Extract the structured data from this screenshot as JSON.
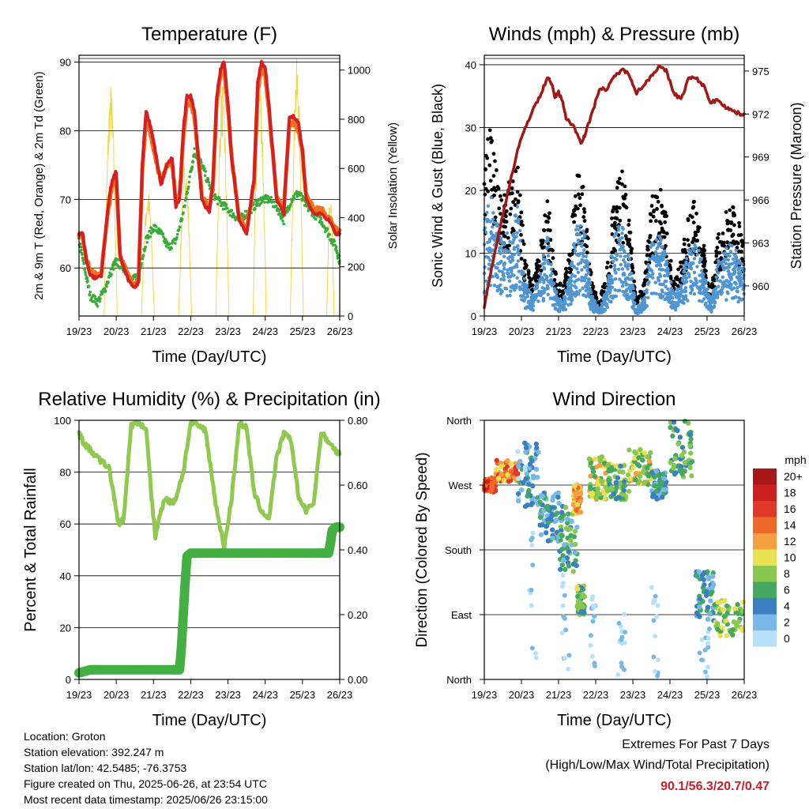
{
  "chart_data": [
    {
      "type": "line",
      "title": "Temperature (F)",
      "xlabel": "Time (Day/UTC)",
      "ylabel": "2m & 9m T (Red, Orange) & 2m Td (Green)",
      "y2label": "Solar Insolation (Yellow)",
      "x_ticks": [
        "19/23",
        "20/23",
        "21/23",
        "22/23",
        "23/23",
        "24/23",
        "25/23",
        "26/23"
      ],
      "xlim": [
        0,
        7
      ],
      "ylim": [
        53,
        91
      ],
      "yticks": [
        60,
        70,
        80,
        90
      ],
      "y2lim": [
        0,
        1060
      ],
      "y2ticks": [
        0,
        200,
        400,
        600,
        800,
        1000
      ],
      "grid": "horizontal",
      "series": [
        {
          "color": "#d42020",
          "x": [
            0,
            0.1,
            0.2,
            0.3,
            0.45,
            0.6,
            0.8,
            0.9,
            1.0,
            1.1,
            1.2,
            1.35,
            1.5,
            1.6,
            1.7,
            1.8,
            1.9,
            1.95,
            2.05,
            2.2,
            2.35,
            2.5,
            2.6,
            2.7,
            2.8,
            2.9,
            3.0,
            3.1,
            3.3,
            3.5,
            3.6,
            3.7,
            3.8,
            3.9,
            4.0,
            4.1,
            4.3,
            4.5,
            4.7,
            4.8,
            4.9,
            5.0,
            5.1,
            5.3,
            5.5,
            5.65,
            5.8,
            5.9,
            6.0,
            6.1,
            6.3,
            6.5,
            6.7,
            6.9,
            7.0
          ],
          "y": [
            65,
            65,
            61,
            59,
            58.5,
            59,
            70,
            73,
            74,
            62,
            60,
            58,
            57,
            58,
            75,
            83,
            81,
            80,
            77,
            72,
            75,
            76,
            69,
            70,
            80,
            85,
            85,
            83,
            70,
            68,
            73,
            85,
            89,
            90,
            84,
            76,
            67,
            65,
            73,
            87,
            90,
            89,
            84,
            70,
            68,
            82,
            82,
            81,
            77,
            70,
            68,
            68,
            67,
            65,
            65
          ]
        },
        {
          "color": "#f07020",
          "x": [
            0,
            0.1,
            0.2,
            0.3,
            0.45,
            0.6,
            0.8,
            0.9,
            1.0,
            1.1,
            1.2,
            1.35,
            1.5,
            1.6,
            1.7,
            1.8,
            1.9,
            1.95,
            2.05,
            2.2,
            2.35,
            2.5,
            2.6,
            2.7,
            2.8,
            2.9,
            3.0,
            3.1,
            3.3,
            3.5,
            3.6,
            3.7,
            3.8,
            3.9,
            4.0,
            4.1,
            4.3,
            4.5,
            4.7,
            4.8,
            4.9,
            5.0,
            5.1,
            5.3,
            5.5,
            5.65,
            5.8,
            5.9,
            6.0,
            6.1,
            6.3,
            6.5,
            6.7,
            6.9,
            7.0
          ],
          "y": [
            65,
            64.5,
            61.5,
            59.5,
            59,
            59.5,
            69,
            72,
            73,
            62,
            60.5,
            58.5,
            57.5,
            58.5,
            74,
            82,
            80,
            79,
            76,
            72.5,
            75,
            75.5,
            69.5,
            70.5,
            79,
            84,
            84,
            82,
            70.5,
            68.5,
            72.5,
            84,
            88,
            89,
            83,
            76,
            67.5,
            65.5,
            72.5,
            86,
            89,
            88,
            83,
            70.5,
            68.5,
            81,
            81,
            80,
            77,
            70.5,
            68.5,
            68.5,
            67.5,
            65.5,
            65.5
          ]
        },
        {
          "color": "#3aaa3a",
          "x": [
            0,
            0.15,
            0.3,
            0.5,
            0.7,
            0.9,
            1.0,
            1.2,
            1.4,
            1.6,
            1.8,
            2.0,
            2.2,
            2.4,
            2.6,
            2.8,
            3.0,
            3.1,
            3.3,
            3.5,
            3.7,
            3.9,
            4.1,
            4.3,
            4.5,
            4.7,
            4.9,
            5.1,
            5.3,
            5.5,
            5.7,
            5.9,
            6.1,
            6.3,
            6.5,
            6.7,
            6.9,
            7.0
          ],
          "y": [
            64,
            60,
            56,
            55,
            57,
            60,
            61,
            60,
            58,
            59,
            64,
            66,
            65,
            63,
            64,
            68,
            74,
            77,
            75,
            72,
            70,
            69,
            68,
            67,
            68,
            69,
            70,
            70,
            69,
            67,
            70,
            71,
            69,
            68,
            67,
            65,
            63,
            61
          ]
        }
      ],
      "solar_peaks": [
        {
          "x": 0.85,
          "w": 0.35,
          "peak": 950
        },
        {
          "x": 1.85,
          "w": 0.35,
          "peak": 520
        },
        {
          "x": 2.85,
          "w": 0.35,
          "peak": 650
        },
        {
          "x": 3.85,
          "w": 0.35,
          "peak": 960
        },
        {
          "x": 4.85,
          "w": 0.35,
          "peak": 1000
        },
        {
          "x": 5.85,
          "w": 0.35,
          "peak": 1050
        },
        {
          "x": 6.75,
          "w": 0.2,
          "peak": 500
        }
      ],
      "solar_color": "#f0d84a"
    },
    {
      "type": "scatter",
      "title": "Winds (mph) & Pressure (mb)",
      "xlabel": "Time (Day/UTC)",
      "ylabel": "Sonic Wind & Gust (Blue, Black)",
      "y2label": "Station Pressure (Maroon)",
      "x_ticks": [
        "19/23",
        "20/23",
        "21/23",
        "22/23",
        "23/23",
        "24/23",
        "25/23",
        "26/23"
      ],
      "xlim": [
        0,
        7
      ],
      "ylim": [
        0,
        41.5
      ],
      "yticks": [
        0,
        10,
        20,
        30,
        40
      ],
      "y2lim": [
        957.9,
        976.1
      ],
      "y2ticks": [
        960,
        963,
        966,
        969,
        972,
        975
      ],
      "grid": "horizontal",
      "wind_envelope": {
        "x": [
          0,
          0.15,
          0.3,
          0.5,
          0.7,
          0.9,
          1.1,
          1.3,
          1.5,
          1.7,
          1.9,
          2.1,
          2.3,
          2.5,
          2.7,
          2.9,
          3.1,
          3.3,
          3.5,
          3.7,
          3.9,
          4.1,
          4.3,
          4.5,
          4.7,
          4.9,
          5.1,
          5.3,
          5.5,
          5.7,
          5.9,
          6.1,
          6.3,
          6.5,
          6.7,
          6.9,
          7.0
        ],
        "wind": [
          14,
          18,
          15,
          11,
          13,
          16,
          5,
          3,
          6,
          12,
          4,
          2,
          6,
          14,
          12,
          3,
          1,
          4,
          12,
          14,
          9,
          1,
          3,
          11,
          12,
          9,
          3,
          5,
          10,
          11,
          7,
          2,
          8,
          10,
          11,
          8,
          7
        ],
        "gust": [
          22,
          28,
          24,
          17,
          20,
          24,
          8,
          5,
          10,
          18,
          7,
          4,
          10,
          22,
          18,
          5,
          2,
          7,
          18,
          22,
          15,
          2,
          5,
          17,
          20,
          15,
          5,
          8,
          16,
          17,
          11,
          3,
          12,
          15,
          16,
          13,
          12
        ]
      },
      "pressure": {
        "color": "#a01818",
        "x": [
          0,
          0.1,
          0.3,
          0.5,
          0.7,
          0.9,
          1.1,
          1.3,
          1.5,
          1.7,
          1.8,
          1.9,
          2.0,
          2.1,
          2.2,
          2.4,
          2.6,
          2.7,
          2.9,
          3.1,
          3.3,
          3.5,
          3.7,
          3.9,
          4.1,
          4.3,
          4.5,
          4.7,
          4.9,
          5.1,
          5.3,
          5.5,
          5.7,
          5.9,
          6.1,
          6.3,
          6.5,
          6.7,
          6.9,
          7.0
        ],
        "y": [
          958.5,
          960,
          962.5,
          965,
          967.3,
          969.5,
          971,
          972.3,
          973.2,
          974.6,
          974.2,
          973.2,
          973.5,
          973,
          971.7,
          971.2,
          970,
          970.5,
          972,
          973.8,
          973.7,
          974.6,
          975.1,
          974.8,
          973.5,
          974,
          974.7,
          975.3,
          975,
          973.5,
          973,
          974.5,
          974.5,
          974,
          972.8,
          973,
          972.5,
          972.2,
          972,
          972
        ]
      }
    },
    {
      "type": "line",
      "title": "Relative Humidity (%) & Precipitation (in)",
      "xlabel": "Time (Day/UTC)",
      "ylabel": "Percent & Total Rainfall",
      "x_ticks": [
        "19/23",
        "20/23",
        "21/23",
        "22/23",
        "23/23",
        "24/23",
        "25/23",
        "26/23"
      ],
      "xlim": [
        0,
        7
      ],
      "ylim": [
        0,
        100
      ],
      "yticks": [
        0,
        20,
        40,
        60,
        80,
        100
      ],
      "y2lim": [
        0,
        0.8
      ],
      "y2ticks": [
        "0.00",
        "0.20",
        "0.40",
        "0.60",
        "0.80"
      ],
      "grid": "horizontal",
      "series": [
        {
          "color": "#90c850",
          "x": [
            0,
            0.1,
            0.2,
            0.4,
            0.6,
            0.8,
            0.95,
            1.05,
            1.2,
            1.4,
            1.6,
            1.8,
            1.95,
            2.05,
            2.2,
            2.3,
            2.5,
            2.6,
            2.8,
            3.0,
            3.2,
            3.4,
            3.6,
            3.7,
            3.9,
            4.1,
            4.3,
            4.5,
            4.7,
            4.9,
            5.1,
            5.3,
            5.5,
            5.7,
            5.9,
            6.1,
            6.3,
            6.5,
            6.7,
            6.9,
            7.0
          ],
          "y": [
            95,
            92,
            90,
            87,
            84,
            82,
            70,
            60,
            62,
            98,
            99,
            97,
            70,
            55,
            65,
            70,
            68,
            70,
            80,
            99,
            98,
            96,
            75,
            65,
            51,
            70,
            99,
            97,
            72,
            65,
            62,
            85,
            95,
            92,
            70,
            65,
            68,
            95,
            92,
            88,
            87
          ]
        },
        {
          "color": "#44b044",
          "x": [
            0,
            0.3,
            0.6,
            1.0,
            1.5,
            2.0,
            2.5,
            2.7,
            2.75,
            2.8,
            2.85,
            2.9,
            3.0,
            3.5,
            4.0,
            4.5,
            5.0,
            5.5,
            6.0,
            6.5,
            6.7,
            6.75,
            6.8,
            6.9,
            7.0
          ],
          "y": [
            0.02,
            0.03,
            0.03,
            0.03,
            0.03,
            0.03,
            0.03,
            0.03,
            0.1,
            0.2,
            0.3,
            0.38,
            0.39,
            0.39,
            0.39,
            0.39,
            0.39,
            0.39,
            0.39,
            0.39,
            0.39,
            0.42,
            0.46,
            0.47,
            0.47
          ]
        }
      ]
    },
    {
      "type": "scatter",
      "title": "Wind Direction",
      "xlabel": "Time (Day/UTC)",
      "ylabel": "Direction (Colored By Speed)",
      "x_ticks": [
        "19/23",
        "20/23",
        "21/23",
        "22/23",
        "23/23",
        "24/23",
        "25/23",
        "26/23"
      ],
      "xlim": [
        0,
        7
      ],
      "ylim": [
        0,
        360
      ],
      "yticks": [
        "North",
        "East",
        "South",
        "West",
        "North"
      ],
      "grid": "horizontal",
      "legend_title": "mph",
      "legend_labels": [
        "20+",
        "18",
        "16",
        "14",
        "12",
        "10",
        "8",
        "6",
        "4",
        "2",
        "0"
      ],
      "legend_colors": [
        "#a81818",
        "#cc2020",
        "#e03828",
        "#f06828",
        "#f4a040",
        "#e8e050",
        "#88c850",
        "#44a860",
        "#3a80c0",
        "#78b8e8",
        "#b8e0f8"
      ],
      "clusters": [
        {
          "x": [
            0,
            0.3
          ],
          "dir": [
            260,
            280
          ],
          "speed": 16
        },
        {
          "x": [
            0.3,
            0.9
          ],
          "dir": [
            275,
            305
          ],
          "speed": 13
        },
        {
          "x": [
            0.9,
            1.5
          ],
          "dir": [
            240,
            330
          ],
          "speed": 3
        },
        {
          "x": [
            1.5,
            2.0
          ],
          "dir": [
            190,
            260
          ],
          "speed": 4
        },
        {
          "x": [
            2.0,
            2.5
          ],
          "dir": [
            150,
            250
          ],
          "speed": 5
        },
        {
          "x": [
            2.4,
            2.6
          ],
          "dir": [
            230,
            270
          ],
          "speed": 12
        },
        {
          "x": [
            2.5,
            2.7
          ],
          "dir": [
            90,
            130
          ],
          "speed": 7
        },
        {
          "x": [
            2.8,
            3.3
          ],
          "dir": [
            250,
            310
          ],
          "speed": 9
        },
        {
          "x": [
            3.3,
            3.9
          ],
          "dir": [
            250,
            300
          ],
          "speed": 7
        },
        {
          "x": [
            3.9,
            4.5
          ],
          "dir": [
            270,
            320
          ],
          "speed": 9
        },
        {
          "x": [
            4.5,
            4.9
          ],
          "dir": [
            250,
            290
          ],
          "speed": 4
        },
        {
          "x": [
            5.0,
            5.6
          ],
          "dir": [
            280,
            360
          ],
          "speed": 6
        },
        {
          "x": [
            5.7,
            6.2
          ],
          "dir": [
            80,
            150
          ],
          "speed": 4
        },
        {
          "x": [
            6.2,
            7.0
          ],
          "dir": [
            60,
            110
          ],
          "speed": 8
        }
      ],
      "strays": [
        {
          "x": [
            1.2,
            1.4
          ],
          "dir": [
            0,
            360
          ]
        },
        {
          "x": [
            2.1,
            2.3
          ],
          "dir": [
            0,
            200
          ]
        },
        {
          "x": [
            2.8,
            3.0
          ],
          "dir": [
            0,
            120
          ]
        },
        {
          "x": [
            3.6,
            3.8
          ],
          "dir": [
            0,
            100
          ]
        },
        {
          "x": [
            4.5,
            4.7
          ],
          "dir": [
            0,
            140
          ]
        },
        {
          "x": [
            5.8,
            6.1
          ],
          "dir": [
            0,
            80
          ]
        }
      ]
    }
  ],
  "info": {
    "location": "Location: Groton",
    "elevation": "Station elevation: 392.247 m",
    "latlon": "Station lat/lon: 42.5485; -76.3753",
    "created": "Figure created on Thu, 2025-06-26, at 23:54 UTC",
    "latest": "Most recent data timestamp: 2025/06/26 23:15:00"
  },
  "extremes": {
    "title": "Extremes For Past 7 Days",
    "subtitle": "(High/Low/Max Wind/Total Precipitation)",
    "value": "90.1/56.3/20.7/0.47"
  }
}
